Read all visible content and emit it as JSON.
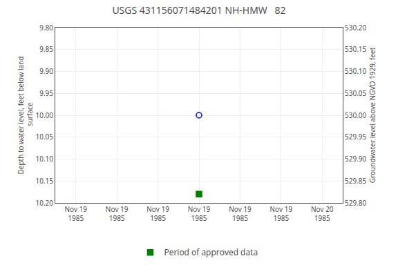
{
  "chart_data": {
    "type": "scatter",
    "title": "USGS 431156071484201 NH-HMW   82",
    "ylabel": "Depth to water level, feet below land\n surface",
    "y2label": "Groundwater level above NGVD 1929, feet",
    "categories": [
      "Nov 19\n1985",
      "Nov 19\n1985",
      "Nov 19\n1985",
      "Nov 19\n1985",
      "Nov 19\n1985",
      "Nov 19\n1985",
      "Nov 20\n1985"
    ],
    "series": [
      {
        "color": "blue",
        "marker": "circle-open",
        "values": [
          null,
          null,
          null,
          10.0,
          null,
          null,
          null
        ]
      },
      {
        "name": "Period of approved data",
        "color": "green",
        "marker": "square",
        "values": [
          null,
          null,
          null,
          10.18,
          null,
          null,
          null
        ]
      }
    ],
    "ylim": [
      10.2,
      9.8
    ],
    "yticks": [
      {
        "value": 9.8,
        "label": "9.80"
      },
      {
        "value": 9.85,
        "label": "9.85"
      },
      {
        "value": 9.9,
        "label": "9.90"
      },
      {
        "value": 9.95,
        "label": "9.95"
      },
      {
        "value": 10.0,
        "label": "10.00"
      },
      {
        "value": 10.05,
        "label": "10.05"
      },
      {
        "value": 10.1,
        "label": "10.10"
      },
      {
        "value": 10.15,
        "label": "10.15"
      },
      {
        "value": 10.2,
        "label": "10.20"
      }
    ],
    "y2lim": [
      529.8,
      530.2
    ],
    "y2ticks": [
      {
        "value": 530.2,
        "label": "530.20"
      },
      {
        "value": 530.15,
        "label": "530.15"
      },
      {
        "value": 530.1,
        "label": "530.10"
      },
      {
        "value": 530.05,
        "label": "530.05"
      },
      {
        "value": 530.0,
        "label": "530.00"
      },
      {
        "value": 529.95,
        "label": "529.95"
      },
      {
        "value": 529.9,
        "label": "529.90"
      },
      {
        "value": 529.85,
        "label": "529.85"
      },
      {
        "value": 529.8,
        "label": "529.80"
      }
    ],
    "grid": true,
    "legend": "bottom"
  }
}
